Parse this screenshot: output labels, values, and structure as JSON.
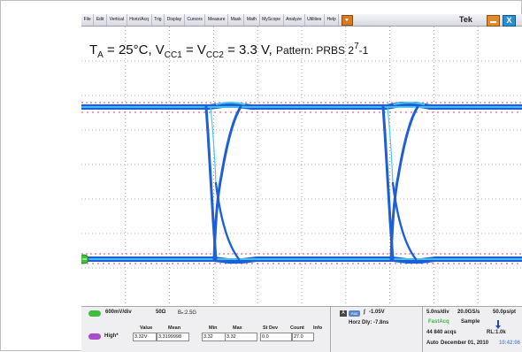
{
  "menubar": {
    "items": [
      "File",
      "Edit",
      "Vertical",
      "Horiz/Acq",
      "Trig",
      "Display",
      "Cursors",
      "Measure",
      "Mask",
      "Math",
      "MyScope",
      "Analyze",
      "Utilities",
      "Help"
    ],
    "brand": "Tek",
    "close_label": "X"
  },
  "annotation": {
    "t_var": "T",
    "t_sub": "A",
    "t_rest": " = 25°C, V",
    "vcc1_sub": "CC1",
    "mid": " = V",
    "vcc2_sub": "CC2",
    "tail": " = 3.3 V, ",
    "pattern": "Pattern: PRBS 2",
    "pattern_sup": "7",
    "pattern_end": "-1"
  },
  "channel": {
    "scale": "600mV/div",
    "impedance": "50Ω",
    "bandwidth": "Bₙ:2.5G"
  },
  "measurements": {
    "headers": [
      "Value",
      "Mean",
      "Min",
      "Max",
      "St Dev",
      "Count",
      "Info"
    ],
    "rows": [
      {
        "name": "High*",
        "value": "3.32V",
        "mean": "3.3199998",
        "min": "3.32",
        "max": "3.32",
        "stdev": "0.0",
        "count": "27.0",
        "info": ""
      }
    ]
  },
  "trigger": {
    "source": "A",
    "aux": "Aux",
    "edge": "∫",
    "level": "-1.05V",
    "horz_delay": "Horz Dly:  -7.8ns"
  },
  "acquisition": {
    "time_div": "5.0ns/div",
    "sample_rate": "20.0GS/s",
    "resolution": "50.0ps/pt",
    "mode": "FastAcq",
    "sample": "Sample",
    "acqs": "44 840 acqs",
    "record_length": "RL:1.0k",
    "run_mode": "Auto",
    "date": "December 01, 2010",
    "time": "10:42:06"
  },
  "colors": {
    "trace": "#1f5fd6",
    "trace_hot": "#49c8f0",
    "noise": "#d23a6a",
    "ground_marker": "#3fbd3f"
  }
}
